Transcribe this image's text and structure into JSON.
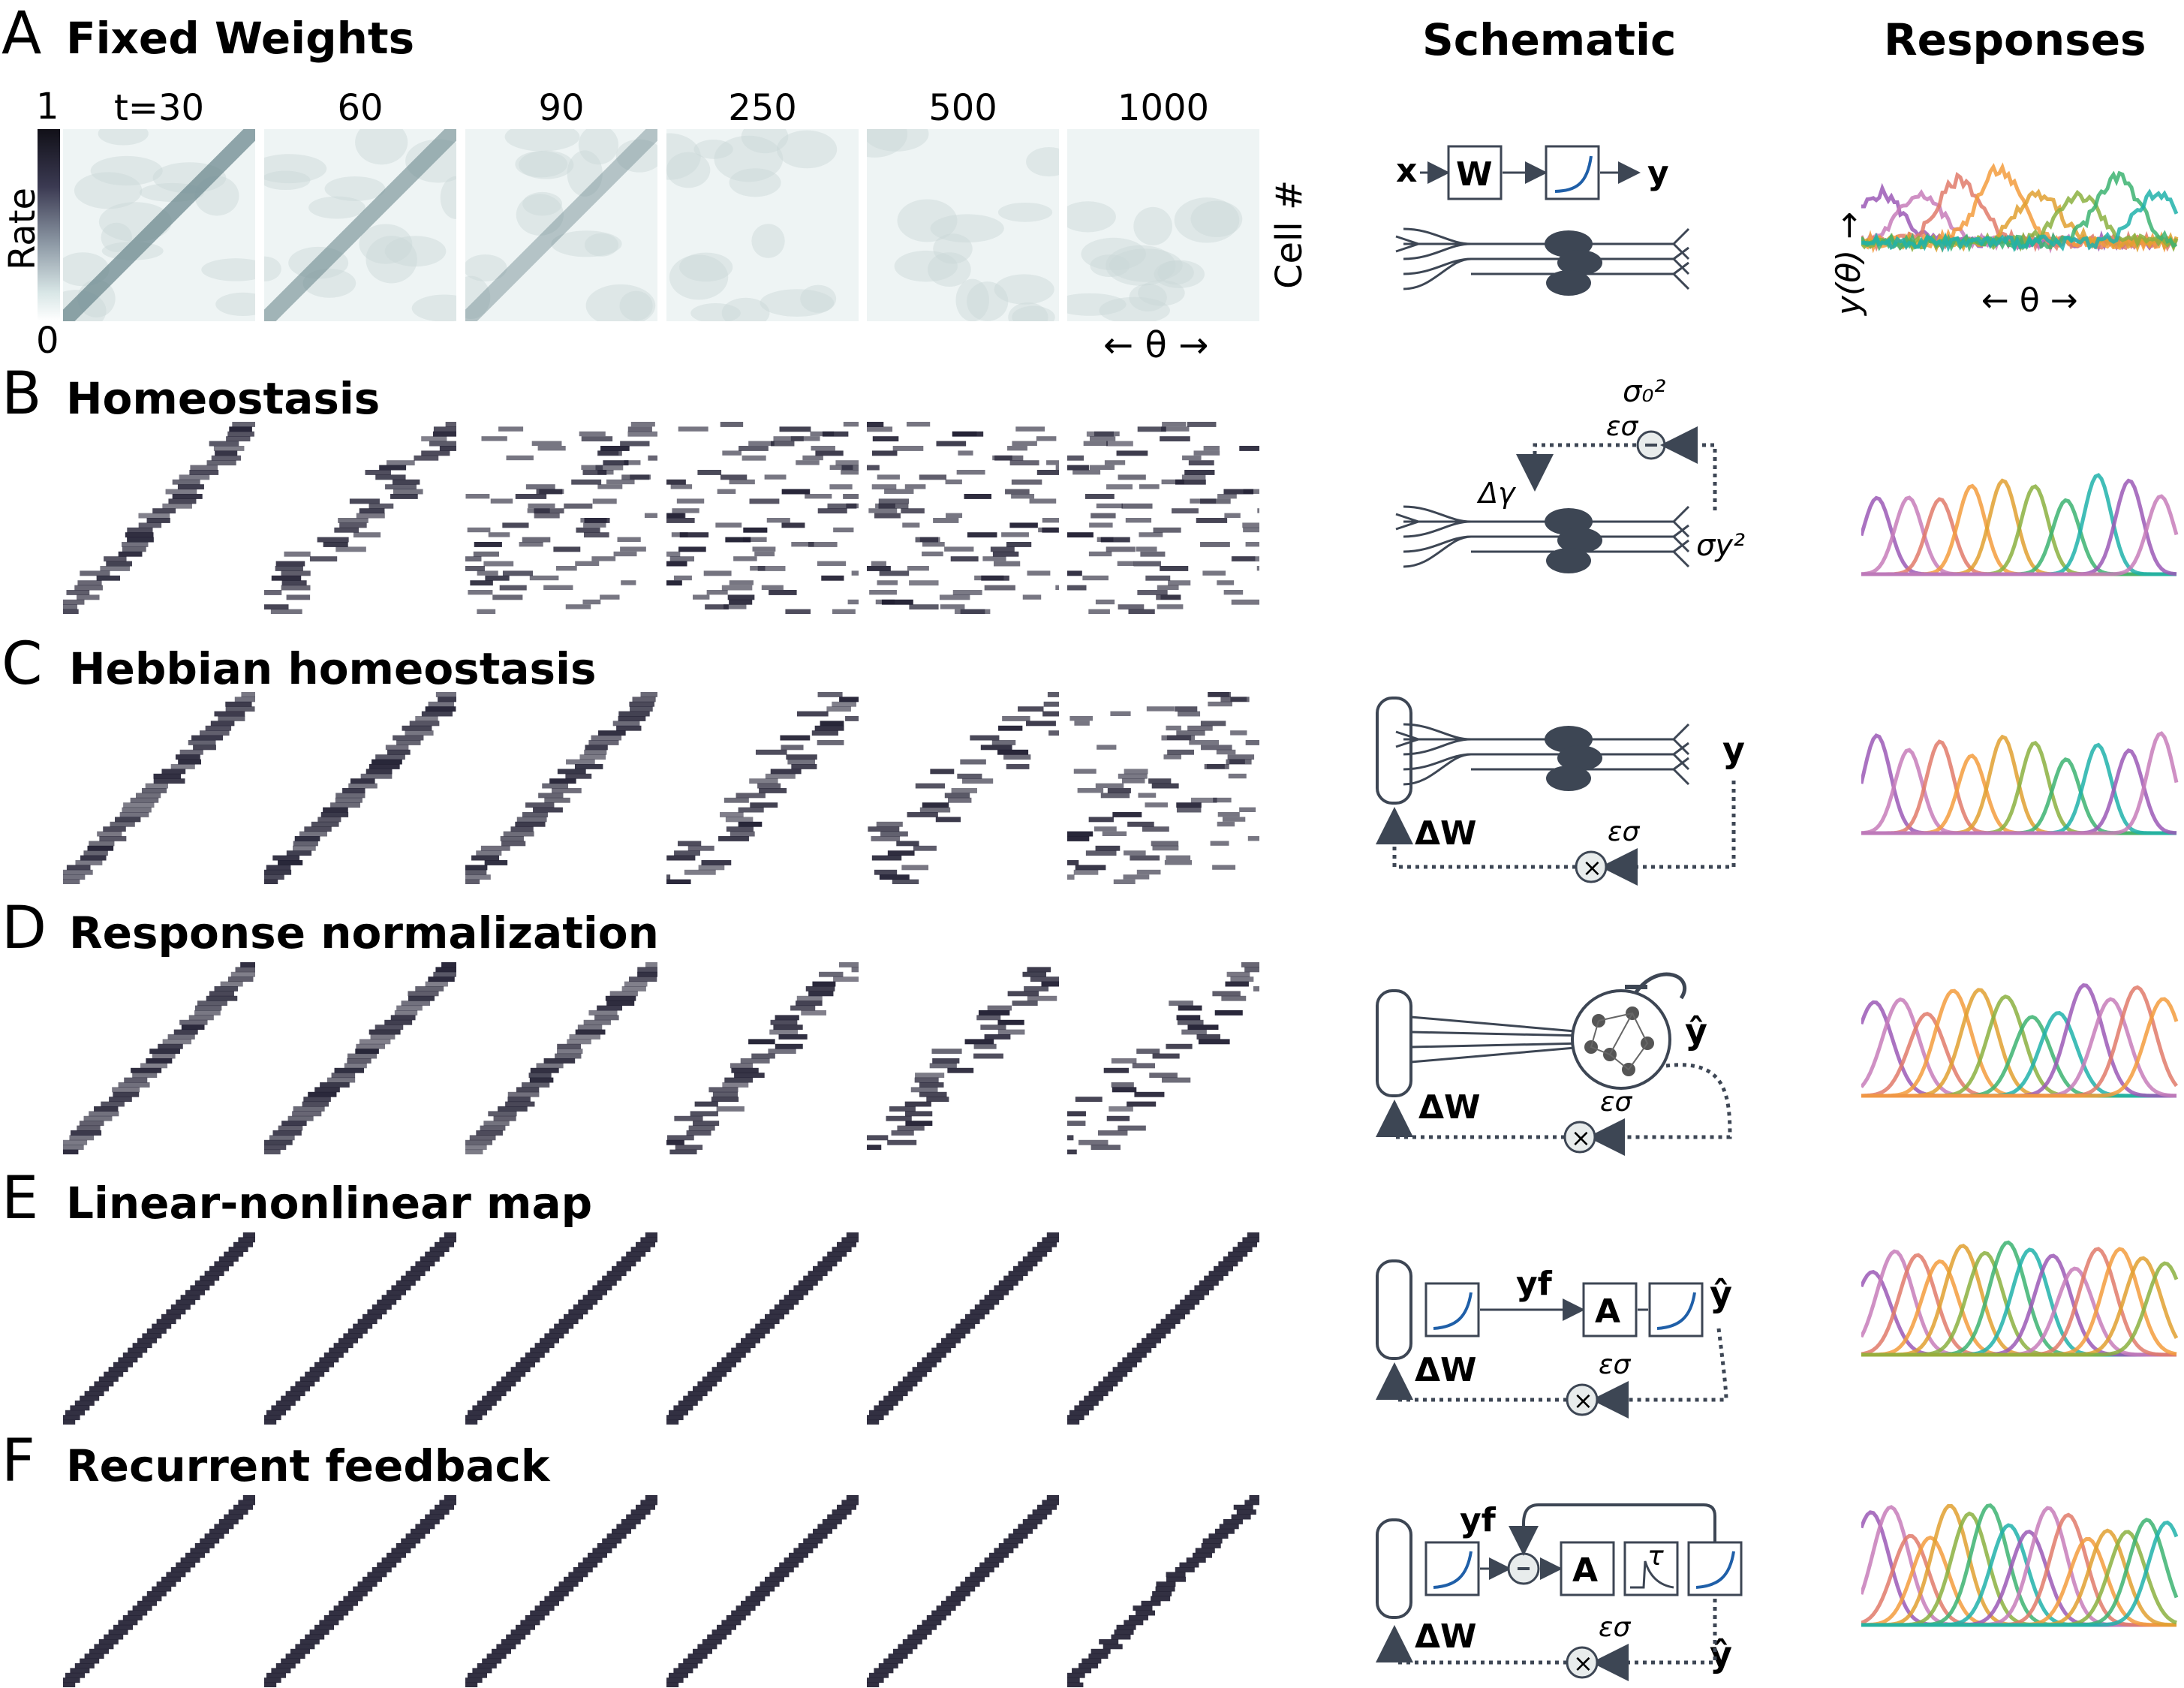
{
  "column_headers": {
    "schematic": "Schematic",
    "responses": "Responses"
  },
  "time_labels": [
    "t=30",
    "60",
    "90",
    "250",
    "500",
    "1000"
  ],
  "colorbar": {
    "max_label": "1",
    "min_label": "0",
    "label": "Rate"
  },
  "axis_labels": {
    "cell": "Cell #",
    "theta": "← θ →",
    "response_y": "y(θ) →",
    "response_theta": "← θ →"
  },
  "panels": [
    {
      "letter": "A",
      "title": "Fixed Weights",
      "style": "fixed"
    },
    {
      "letter": "B",
      "title": "Homeostasis",
      "style": "homeo"
    },
    {
      "letter": "C",
      "title": "Hebbian homeostasis",
      "style": "hebb"
    },
    {
      "letter": "D",
      "title": "Response normalization",
      "style": "norm"
    },
    {
      "letter": "E",
      "title": "Linear-nonlinear map",
      "style": "ln"
    },
    {
      "letter": "F",
      "title": "Recurrent feedback",
      "style": "rec"
    }
  ],
  "schematic_labels": {
    "A": {
      "x": "x",
      "W": "W",
      "y": "y"
    },
    "B": {
      "sigma0": "σ₀²",
      "eps": "εσ",
      "dgamma": "Δγ",
      "sigmay": "σy²",
      "minus": "−"
    },
    "C": {
      "y": "y",
      "dW": "ΔW",
      "eps": "εσ",
      "times": "×"
    },
    "D": {
      "yhat": "ŷ",
      "dW": "ΔW",
      "eps": "εσ",
      "times": "×"
    },
    "E": {
      "yf": "yf",
      "A": "A",
      "yhat": "ŷ",
      "dW": "ΔW",
      "eps": "εσ",
      "times": "×"
    },
    "F": {
      "yf": "yf",
      "A": "A",
      "tau": "τ",
      "yhat": "ŷ",
      "dW": "ΔW",
      "eps": "εσ",
      "times": "×",
      "minus": "−"
    }
  },
  "colors": {
    "heatmap_low": "#ffffff",
    "heatmap_high": "#1c1a2e",
    "schematic": "#3d4654",
    "curve_palette": [
      "#9b59b6",
      "#c77dba",
      "#e07a6a",
      "#f39c3d",
      "#e0a030",
      "#8bb040",
      "#3cb371",
      "#20b2aa"
    ]
  }
}
